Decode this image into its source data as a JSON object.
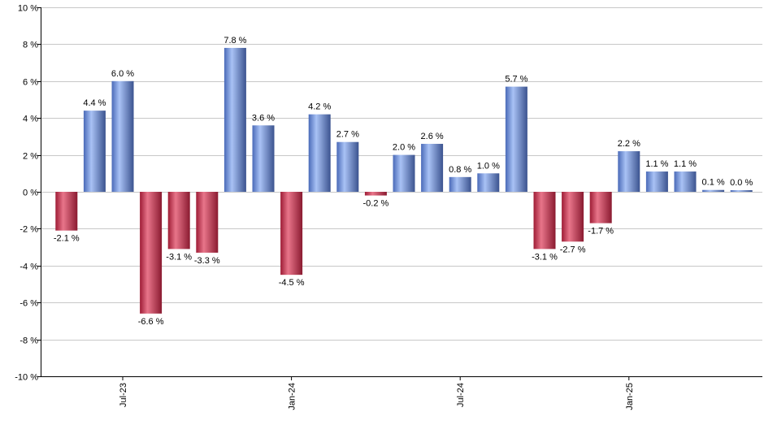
{
  "chart_data": {
    "type": "bar",
    "title": "",
    "xlabel": "",
    "ylabel": "",
    "ylim": [
      -10,
      10
    ],
    "y_ticks": [
      10,
      8,
      6,
      4,
      2,
      0,
      -2,
      -4,
      -6,
      -8,
      -10
    ],
    "y_tick_labels": [
      "10 %",
      "8 %",
      "6 %",
      "4 %",
      "2 %",
      "0 %",
      "-2 %",
      "-4 %",
      "-6 %",
      "-8 %",
      "-10 %"
    ],
    "x_tick_labels": [
      {
        "label": "Jul-23",
        "index": 2
      },
      {
        "label": "Jan-24",
        "index": 8
      },
      {
        "label": "Jul-24",
        "index": 14
      },
      {
        "label": "Jan-25",
        "index": 20
      }
    ],
    "grid": true,
    "legend": "none",
    "positive_color": "#7f9fe0",
    "negative_color": "#c8304d",
    "values": [
      -2.1,
      4.4,
      6.0,
      -6.6,
      -3.1,
      -3.3,
      7.8,
      3.6,
      -4.5,
      4.2,
      2.7,
      -0.2,
      2.0,
      2.6,
      0.8,
      1.0,
      5.7,
      -3.1,
      -2.7,
      -1.7,
      2.2,
      1.1,
      1.1,
      0.1,
      0.0
    ],
    "value_labels": [
      "-2.1 %",
      "4.4 %",
      "6.0 %",
      "-6.6 %",
      "-3.1 %",
      "-3.3 %",
      "7.8 %",
      "3.6 %",
      "-4.5 %",
      "4.2 %",
      "2.7 %",
      "-0.2 %",
      "2.0 %",
      "2.6 %",
      "0.8 %",
      "1.0 %",
      "5.7 %",
      "-3.1 %",
      "-2.7 %",
      "-1.7 %",
      "2.2 %",
      "1.1 %",
      "1.1 %",
      "0.1 %",
      "0.0 %"
    ]
  }
}
